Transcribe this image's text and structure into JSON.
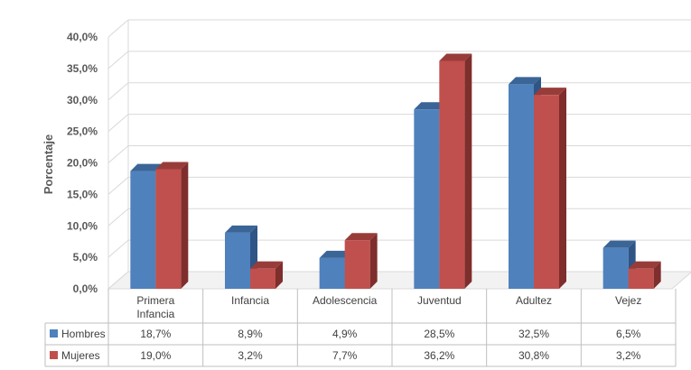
{
  "chart_data": {
    "type": "bar",
    "ylabel": "Porcentaje",
    "ylim": [
      0,
      40
    ],
    "yticks": [
      "0,0%",
      "5,0%",
      "10,0%",
      "15,0%",
      "20,0%",
      "25,0%",
      "30,0%",
      "35,0%",
      "40,0%"
    ],
    "categories": [
      [
        "Primera",
        "Infancia"
      ],
      [
        "Infancia"
      ],
      [
        "Adolescencia"
      ],
      [
        "Juventud"
      ],
      [
        "Adultez"
      ],
      [
        "Vejez"
      ]
    ],
    "series": [
      {
        "name": "Hombres",
        "color": "#4F81BD",
        "top": "#3A6596",
        "side": "#2E5585",
        "values": [
          18.7,
          8.9,
          4.9,
          28.5,
          32.5,
          6.5
        ],
        "labels": [
          "18,7%",
          "8,9%",
          "4,9%",
          "28,5%",
          "32,5%",
          "6,5%"
        ]
      },
      {
        "name": "Mujeres",
        "color": "#C0504D",
        "top": "#983C3A",
        "side": "#7E2E2C",
        "values": [
          19.0,
          3.2,
          7.7,
          36.2,
          30.8,
          3.2
        ],
        "labels": [
          "19,0%",
          "3,2%",
          "7,7%",
          "36,2%",
          "30,8%",
          "3,2%"
        ]
      }
    ],
    "grid": true,
    "legend": "table-left",
    "data_table": true
  }
}
